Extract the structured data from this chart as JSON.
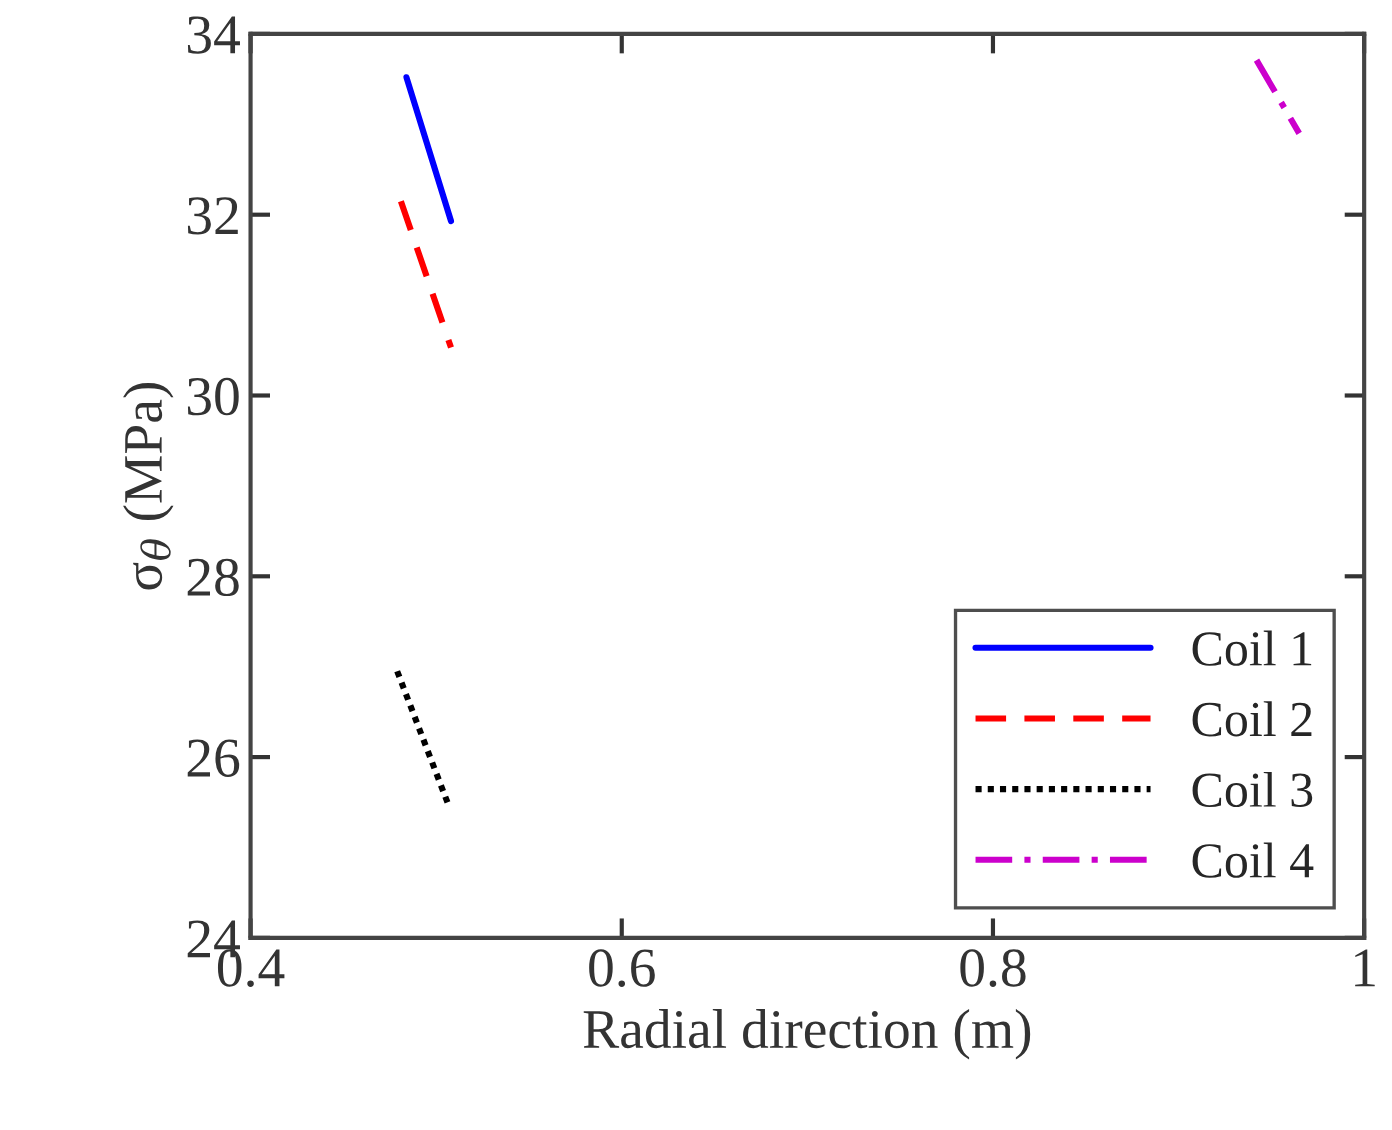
{
  "chart_data": {
    "type": "line",
    "xlabel": "Radial direction (m)",
    "ylabel": "σ$_{θ}$ (MPa)",
    "xlim": [
      0.4,
      1
    ],
    "xticks": [
      0.4,
      0.6,
      0.8,
      1
    ],
    "ylim": [
      24,
      34
    ],
    "yticks": [
      24,
      26,
      28,
      30,
      32,
      34
    ],
    "grid": false,
    "legend": "bottom right",
    "marker": "none",
    "series": [
      {
        "name": "Coil 1",
        "color": "#0000ff",
        "line_style": "solid",
        "x": [
          0.484,
          0.508
        ],
        "values": [
          33.52,
          31.93
        ]
      },
      {
        "name": "Coil 2",
        "color": "#ff0000",
        "line_style": "dashed",
        "x": [
          0.481,
          0.508
        ],
        "values": [
          32.15,
          30.53
        ]
      },
      {
        "name": "Coil 3",
        "color": "#000000",
        "line_style": "dotted",
        "x": [
          0.479,
          0.507
        ],
        "values": [
          26.95,
          25.45
        ]
      },
      {
        "name": "Coil 4",
        "color": "#cc00cc",
        "line_style": "dashdot",
        "x": [
          0.942,
          0.965
        ],
        "values": [
          33.71,
          32.9
        ]
      }
    ]
  }
}
